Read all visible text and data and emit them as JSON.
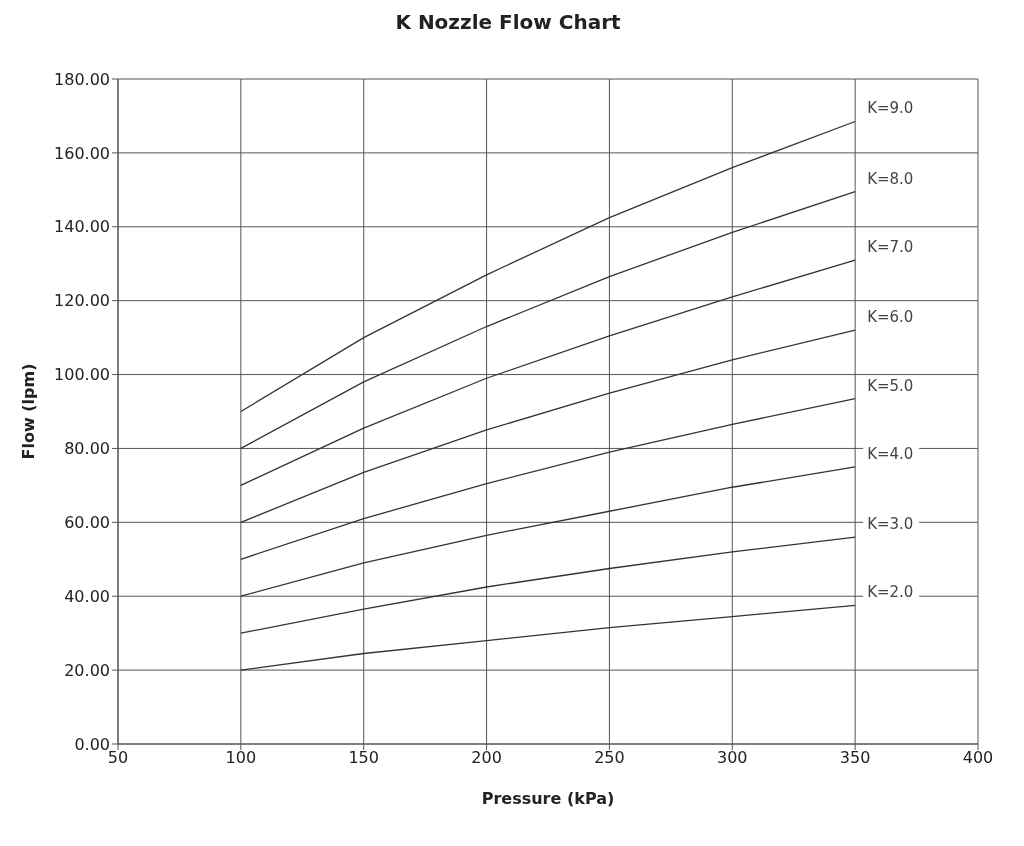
{
  "chart_data": {
    "type": "line",
    "title": "K Nozzle Flow Chart",
    "xlabel": "Pressure (kPa)",
    "ylabel": "Flow (lpm)",
    "x": [
      100,
      150,
      200,
      250,
      300,
      350
    ],
    "series": [
      {
        "name": "K=2.0",
        "color": "#333333",
        "values": [
          20,
          24.5,
          28,
          31.5,
          34.5,
          37.5
        ]
      },
      {
        "name": "K=3.0",
        "color": "#333333",
        "values": [
          30,
          36.5,
          42.5,
          47.5,
          52,
          56
        ]
      },
      {
        "name": "K=4.0",
        "color": "#333333",
        "values": [
          40,
          49,
          56.5,
          63,
          69.5,
          75
        ]
      },
      {
        "name": "K=5.0",
        "color": "#333333",
        "values": [
          50,
          61,
          70.5,
          79,
          86.5,
          93.5
        ]
      },
      {
        "name": "K=6.0",
        "color": "#333333",
        "values": [
          60,
          73.5,
          85,
          95,
          104,
          112
        ]
      },
      {
        "name": "K=7.0",
        "color": "#333333",
        "values": [
          70,
          85.5,
          99,
          110.5,
          121,
          131
        ]
      },
      {
        "name": "K=8.0",
        "color": "#333333",
        "values": [
          80,
          98,
          113,
          126.5,
          138.5,
          149.5
        ]
      },
      {
        "name": "K=9.0",
        "color": "#333333",
        "values": [
          90,
          110,
          127,
          142.5,
          156,
          168.5
        ]
      }
    ],
    "xlim": [
      50,
      400
    ],
    "xticks": [
      50,
      100,
      150,
      200,
      250,
      300,
      350,
      400
    ],
    "ylim": [
      0,
      180
    ],
    "yticks": [
      {
        "value": 0,
        "label": "0.00"
      },
      {
        "value": 20,
        "label": "20.00"
      },
      {
        "value": 40,
        "label": "40.00"
      },
      {
        "value": 60,
        "label": "60.00"
      },
      {
        "value": 80,
        "label": "80.00"
      },
      {
        "value": 100,
        "label": "100.00"
      },
      {
        "value": 120,
        "label": "120.00"
      },
      {
        "value": 140,
        "label": "140.00"
      },
      {
        "value": 160,
        "label": "160.00"
      },
      {
        "value": 180,
        "label": "180.00"
      }
    ],
    "grid": true,
    "legend": false,
    "marker": "none",
    "line_style": "solid"
  }
}
